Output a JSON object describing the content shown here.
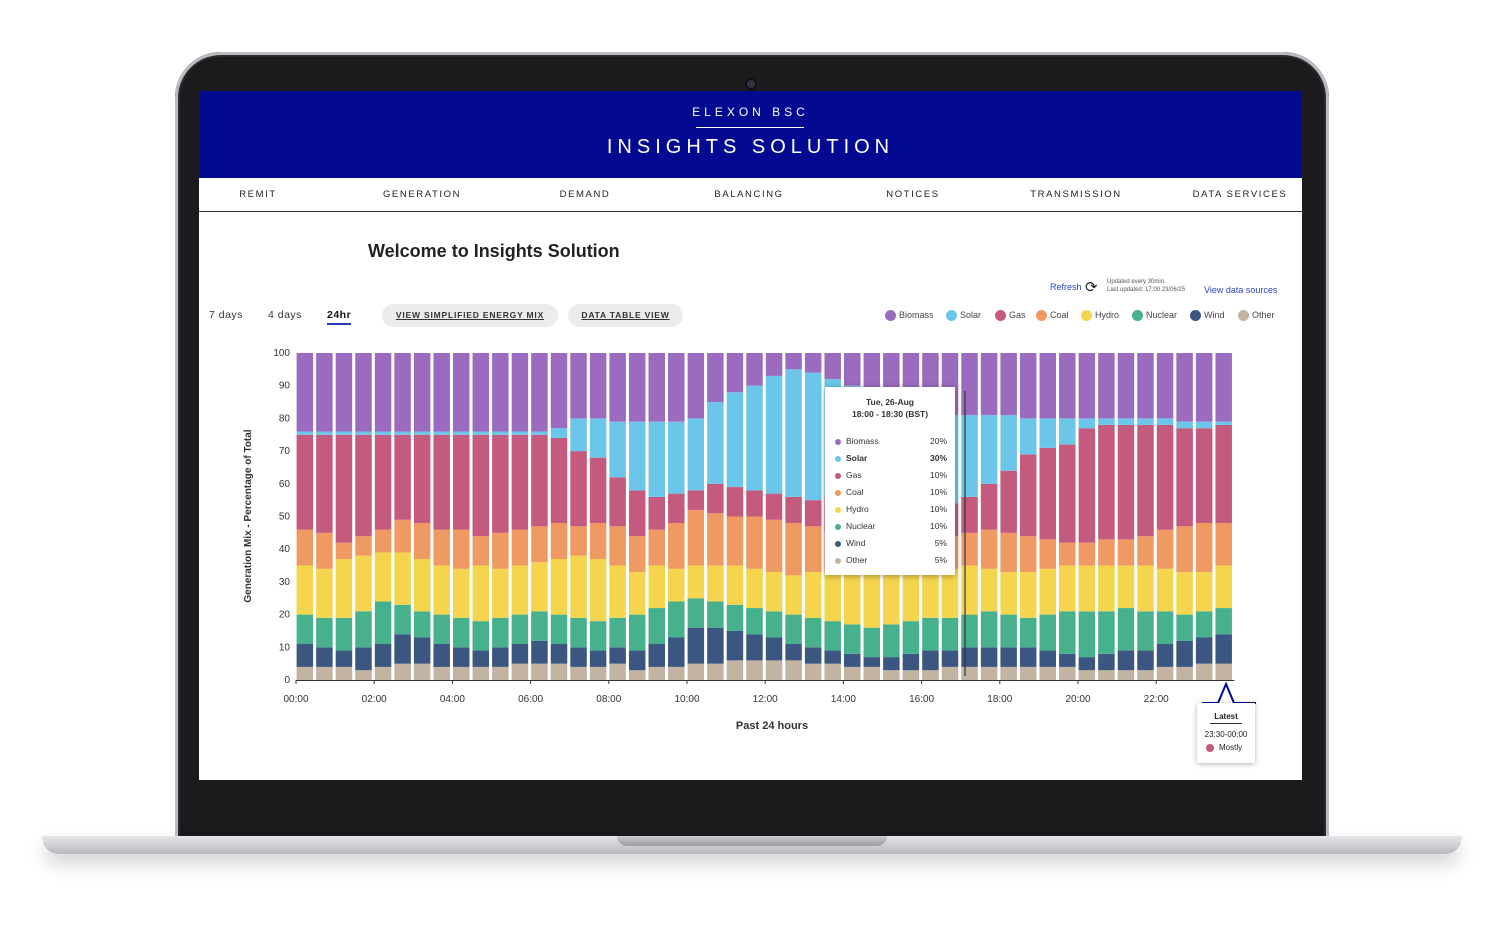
{
  "brand": "ELEXON BSC",
  "product": "INSIGHTS SOLUTION",
  "nav": [
    "REMIT",
    "GENERATION",
    "DEMAND",
    "BALANCING",
    "NOTICES",
    "TRANSMISSION",
    "DATA SERVICES"
  ],
  "welcome": "Welcome to Insights Solution",
  "refresh": {
    "label": "Refresh",
    "updated_every": "Updated every 30min.",
    "last_updated": "Last updated: 17:00 23/06/25",
    "sources_link": "View data sources"
  },
  "ranges": [
    "7 days",
    "4 days",
    "24hr"
  ],
  "active_range": "24hr",
  "buttons": {
    "simplified": "VIEW SIMPLIFIED ENERGY MIX",
    "table": "DATA TABLE VIEW"
  },
  "colors": {
    "Biomass": "#9b6bbf",
    "Solar": "#6cc6ea",
    "Gas": "#c55a7f",
    "Coal": "#ee9a62",
    "Hydro": "#f4d54d",
    "Nuclear": "#47b08c",
    "Wind": "#3b5781",
    "Other": "#c2b3a3",
    "header": "#020a91",
    "link": "#2a44c4"
  },
  "tooltip": {
    "date": "Tue, 26-Aug",
    "time": "18:00 - 18:30 (BST)",
    "bold_item": "Solar",
    "rows": [
      {
        "name": "Biomass",
        "value": "20%"
      },
      {
        "name": "Solar",
        "value": "30%"
      },
      {
        "name": "Gas",
        "value": "10%"
      },
      {
        "name": "Coal",
        "value": "10%"
      },
      {
        "name": "Hydro",
        "value": "10%"
      },
      {
        "name": "Nuclear",
        "value": "10%"
      },
      {
        "name": "Wind",
        "value": "5%"
      },
      {
        "name": "Other",
        "value": "5%"
      }
    ]
  },
  "latest": {
    "title": "Latest",
    "time": "23:30-00:00",
    "value": "Mostly"
  },
  "chart_data": {
    "type": "bar",
    "stacked": true,
    "xlabel": "Past 24 hours",
    "ylabel": "Generation Mix - Percentage of Total",
    "ylim": [
      0,
      100
    ],
    "yticks": [
      0,
      10,
      20,
      30,
      40,
      50,
      60,
      70,
      80,
      90,
      100
    ],
    "xtick_labels": [
      "00:00",
      "02:00",
      "04:00",
      "06:00",
      "08:00",
      "10:00",
      "12:00",
      "14:00",
      "16:00",
      "18:00",
      "20:00",
      "22:00"
    ],
    "series_order": [
      "Other",
      "Wind",
      "Nuclear",
      "Hydro",
      "Coal",
      "Gas",
      "Solar",
      "Biomass"
    ],
    "cumulative_top": {
      "Other": [
        4,
        4,
        4,
        3,
        4,
        5,
        5,
        4,
        4,
        4,
        4,
        5,
        5,
        5,
        4,
        4,
        5,
        3,
        4,
        4,
        5,
        5,
        6,
        6,
        6,
        6,
        5,
        5,
        4,
        4,
        3,
        3,
        3,
        4,
        4,
        4,
        4,
        4,
        4,
        4,
        3,
        3,
        3,
        3,
        4,
        4,
        5,
        5
      ],
      "Wind": [
        11,
        10,
        9,
        10,
        11,
        14,
        13,
        11,
        10,
        9,
        10,
        11,
        12,
        11,
        10,
        9,
        10,
        9,
        11,
        13,
        16,
        16,
        15,
        14,
        13,
        11,
        10,
        9,
        8,
        7,
        7,
        8,
        9,
        9,
        10,
        10,
        10,
        10,
        9,
        8,
        7,
        8,
        9,
        9,
        11,
        12,
        13,
        14
      ],
      "Nuclear": [
        20,
        19,
        19,
        21,
        24,
        23,
        21,
        20,
        19,
        18,
        19,
        20,
        21,
        20,
        19,
        18,
        19,
        20,
        22,
        24,
        25,
        24,
        23,
        22,
        21,
        20,
        19,
        18,
        17,
        16,
        17,
        18,
        19,
        19,
        20,
        21,
        20,
        19,
        20,
        21,
        21,
        21,
        22,
        21,
        21,
        20,
        21,
        22
      ],
      "Hydro": [
        35,
        34,
        37,
        38,
        39,
        39,
        37,
        35,
        34,
        35,
        34,
        35,
        36,
        37,
        38,
        37,
        35,
        33,
        35,
        34,
        35,
        35,
        35,
        34,
        33,
        32,
        33,
        33,
        34,
        34,
        33,
        34,
        34,
        34,
        35,
        34,
        33,
        33,
        34,
        35,
        35,
        35,
        35,
        35,
        34,
        33,
        33,
        35
      ],
      "Coal": [
        46,
        45,
        42,
        44,
        46,
        49,
        48,
        46,
        46,
        44,
        45,
        46,
        47,
        48,
        47,
        48,
        47,
        44,
        46,
        48,
        52,
        51,
        50,
        50,
        49,
        48,
        47,
        45,
        44,
        42,
        41,
        40,
        42,
        44,
        45,
        46,
        45,
        44,
        43,
        42,
        42,
        43,
        43,
        44,
        46,
        47,
        48,
        48
      ],
      "Gas": [
        75,
        75,
        75,
        75,
        75,
        75,
        75,
        75,
        75,
        75,
        75,
        75,
        75,
        74,
        70,
        68,
        62,
        58,
        56,
        57,
        58,
        60,
        59,
        58,
        57,
        56,
        55,
        56,
        55,
        54,
        54,
        53,
        53,
        54,
        56,
        60,
        64,
        69,
        71,
        72,
        77,
        78,
        78,
        78,
        78,
        77,
        77,
        78
      ],
      "Solar": [
        76,
        76,
        76,
        76,
        76,
        76,
        76,
        76,
        76,
        76,
        76,
        76,
        76,
        77,
        80,
        80,
        79,
        79,
        79,
        79,
        80,
        85,
        88,
        90,
        93,
        95,
        94,
        92,
        90,
        88,
        86,
        84,
        82,
        81,
        81,
        81,
        81,
        80,
        80,
        80,
        80,
        80,
        80,
        80,
        80,
        79,
        79,
        79
      ],
      "Biomass": [
        100,
        100,
        100,
        100,
        100,
        100,
        100,
        100,
        100,
        100,
        100,
        100,
        100,
        100,
        100,
        100,
        100,
        100,
        100,
        100,
        100,
        100,
        100,
        100,
        100,
        100,
        100,
        100,
        100,
        100,
        100,
        100,
        100,
        100,
        100,
        100,
        100,
        100,
        100,
        100,
        100,
        100,
        100,
        100,
        100,
        100,
        100,
        100
      ]
    },
    "legend": [
      "Biomass",
      "Solar",
      "Gas",
      "Coal",
      "Hydro",
      "Nuclear",
      "Wind",
      "Other"
    ]
  }
}
